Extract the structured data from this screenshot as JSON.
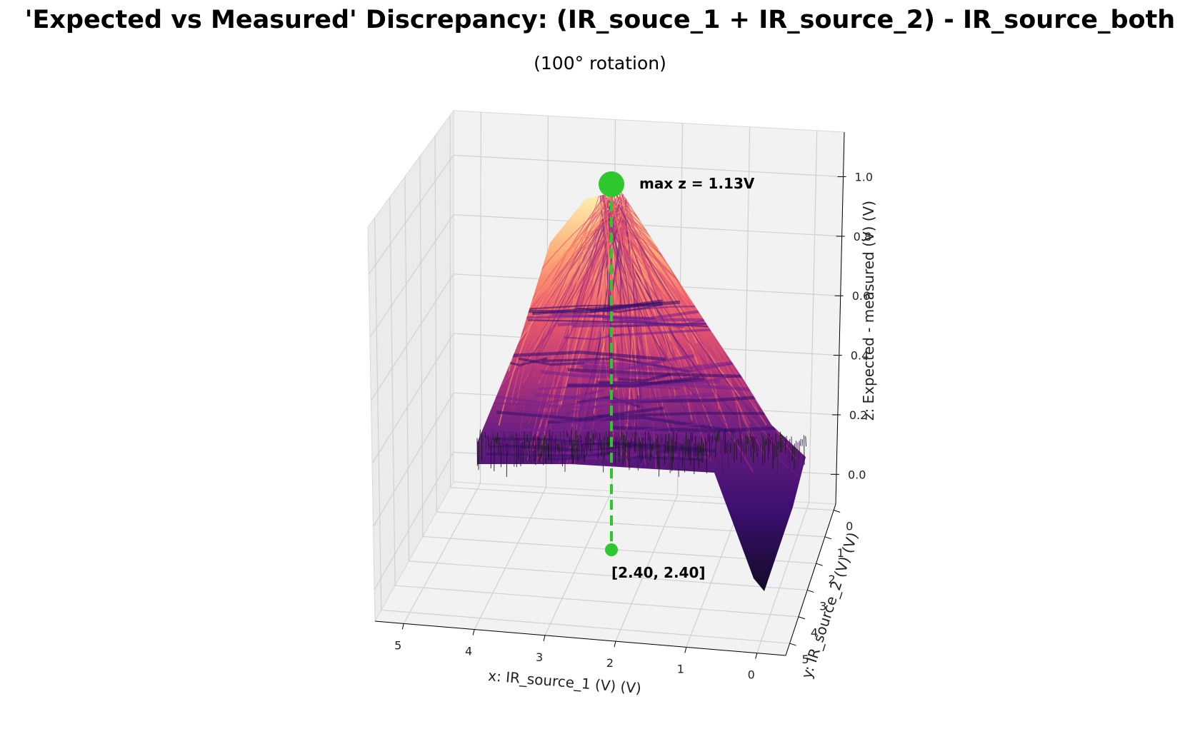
{
  "chart_data": {
    "type": "surface3d",
    "title": "'Expected vs Measured' Discrepancy: (IR_souce_1 + IR_source_2) - IR_source_both",
    "subtitle": "(100° rotation)",
    "xlabel": "x: IR_source_1 (V) (V)",
    "ylabel": "y: IR_source_2 (V) (V)",
    "zlabel": "z: Expected - measured (V) (V)",
    "x_ticks": [
      "5",
      "4",
      "3",
      "2",
      "1",
      "0"
    ],
    "y_ticks": [
      "0",
      "1",
      "2",
      "3",
      "4",
      "5"
    ],
    "z_ticks": [
      "0.0",
      "0.2",
      "0.4",
      "0.6",
      "0.8",
      "1.0"
    ],
    "xlim": [
      0,
      5
    ],
    "ylim": [
      0,
      5
    ],
    "zlim": [
      -0.1,
      1.15
    ],
    "grid": true,
    "colormap": "magma",
    "max_point": {
      "x": 2.4,
      "y": 2.4,
      "z": 1.13
    },
    "max_label": "max z = 1.13V",
    "max_coords_label": "[2.40, 2.40]",
    "marker_color": "#2ec72e"
  }
}
